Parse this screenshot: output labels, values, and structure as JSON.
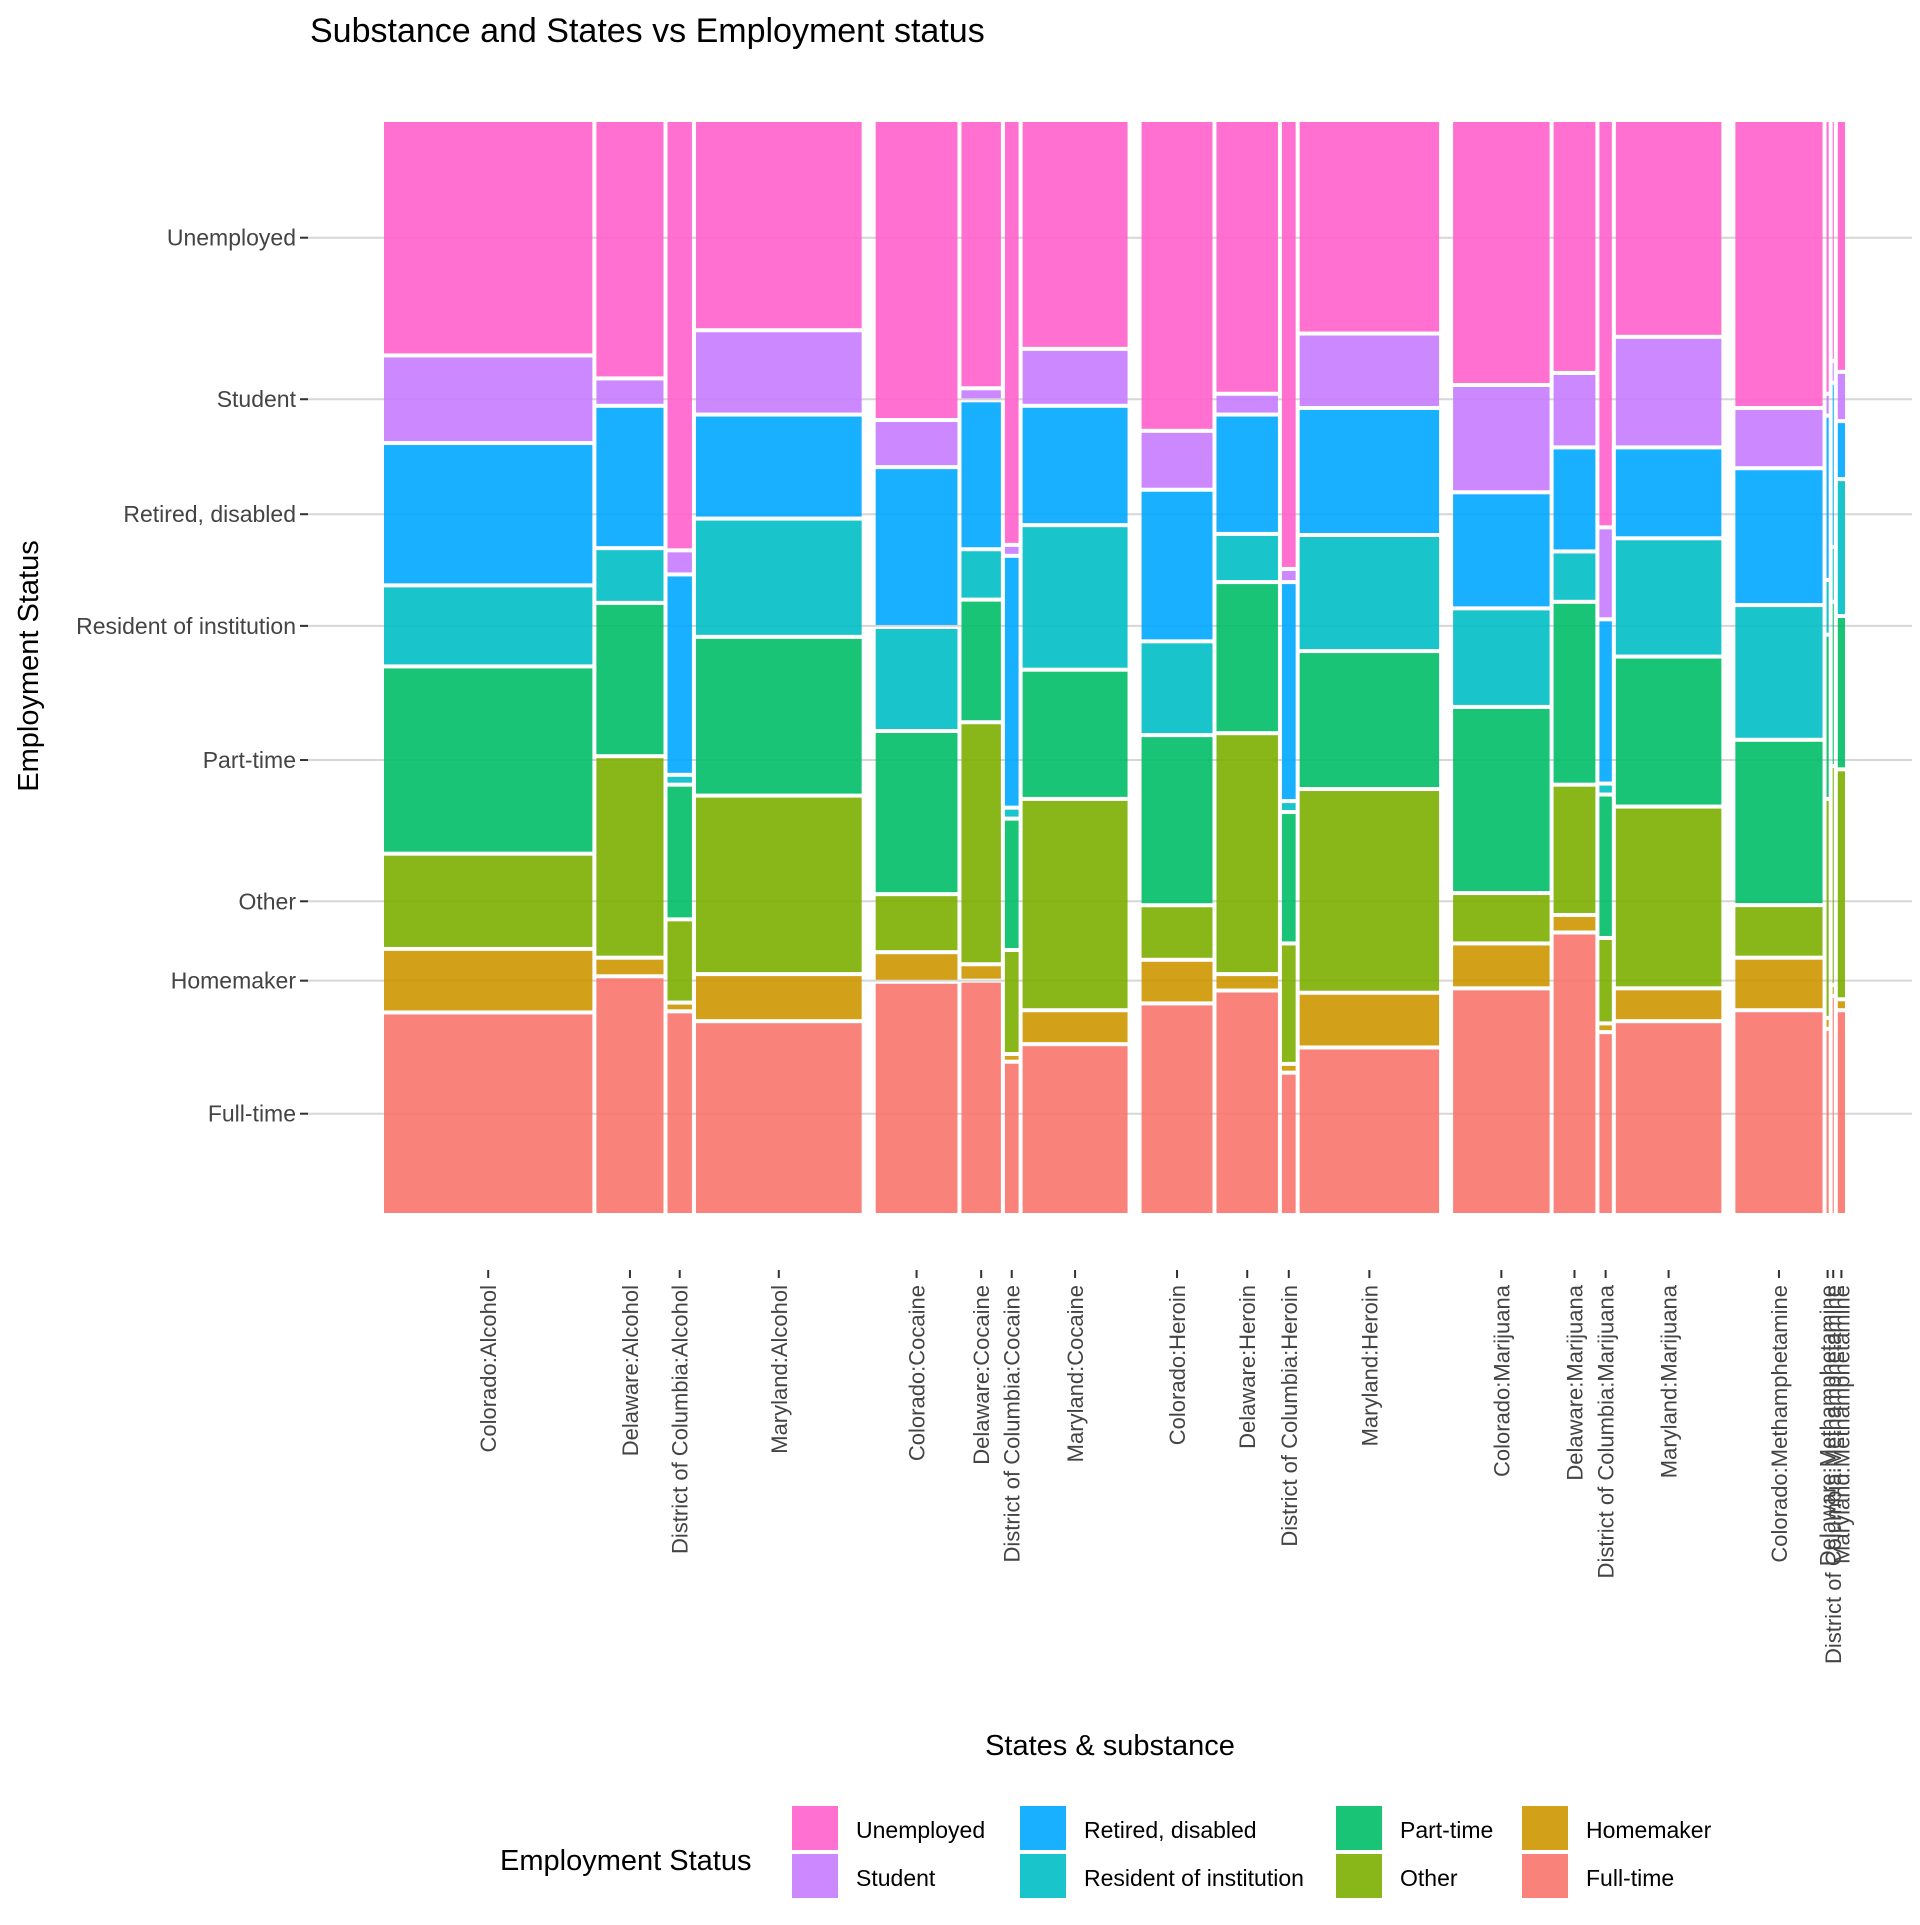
{
  "chart_data": {
    "type": "mosaic",
    "title": "Substance and States vs Employment status",
    "xlabel": "States & substance",
    "ylabel": "Employment Status",
    "grid": true,
    "legend_placement": "bottom",
    "legend_title": "Employment Status",
    "y_categories": [
      "Full-time",
      "Homemaker",
      "Other",
      "Part-time",
      "Resident of institution",
      "Retired, disabled",
      "Student",
      "Unemployed"
    ],
    "colors": {
      "Full-time": "#F8766D",
      "Homemaker": "#CD9600",
      "Other": "#7CAE00",
      "Part-time": "#00BE67",
      "Resident of institution": "#00BFC4",
      "Retired, disabled": "#00A9FF",
      "Student": "#C77CFF",
      "Unemployed": "#FF61CC"
    },
    "legend_order": [
      "Unemployed",
      "Student",
      "Retired, disabled",
      "Resident of institution",
      "Part-time",
      "Other",
      "Homemaker",
      "Full-time"
    ],
    "substances": [
      "Alcohol",
      "Cocaine",
      "Heroin",
      "Marijuana",
      "Methamphetamine"
    ],
    "columns": [
      {
        "label": "Colorado:Alcohol",
        "substance": "Alcohol",
        "width": 0.1475,
        "props": [
          0.185,
          0.058,
          0.087,
          0.171,
          0.074,
          0.13,
          0.08,
          0.215
        ]
      },
      {
        "label": "Delaware:Alcohol",
        "substance": "Alcohol",
        "width": 0.0475,
        "props": [
          0.218,
          0.017,
          0.184,
          0.14,
          0.05,
          0.13,
          0.025,
          0.236
        ]
      },
      {
        "label": "District of Columbia:Alcohol",
        "substance": "Alcohol",
        "width": 0.0173,
        "props": [
          0.186,
          0.008,
          0.076,
          0.123,
          0.009,
          0.183,
          0.022,
          0.393
        ]
      },
      {
        "label": "Maryland:Alcohol",
        "substance": "Alcohol",
        "width": 0.1173,
        "props": [
          0.177,
          0.043,
          0.163,
          0.145,
          0.108,
          0.095,
          0.077,
          0.192
        ]
      },
      {
        "label": "Colorado:Cocaine",
        "substance": "Cocaine",
        "width": 0.0579,
        "props": [
          0.213,
          0.027,
          0.053,
          0.149,
          0.095,
          0.146,
          0.043,
          0.274
        ]
      },
      {
        "label": "Delaware:Cocaine",
        "substance": "Cocaine",
        "width": 0.0279,
        "props": [
          0.214,
          0.015,
          0.221,
          0.112,
          0.046,
          0.136,
          0.011,
          0.245
        ]
      },
      {
        "label": "District of Columbia:Cocaine",
        "substance": "Cocaine",
        "width": 0.0097,
        "props": [
          0.14,
          0.007,
          0.095,
          0.12,
          0.01,
          0.23,
          0.01,
          0.388
        ]
      },
      {
        "label": "Maryland:Cocaine",
        "substance": "Cocaine",
        "width": 0.0743,
        "props": [
          0.156,
          0.031,
          0.193,
          0.118,
          0.132,
          0.109,
          0.052,
          0.209
        ]
      },
      {
        "label": "Colorado:Heroin",
        "substance": "Heroin",
        "width": 0.0502,
        "props": [
          0.194,
          0.04,
          0.05,
          0.156,
          0.086,
          0.139,
          0.054,
          0.285
        ]
      },
      {
        "label": "Delaware:Heroin",
        "substance": "Heroin",
        "width": 0.0435,
        "props": [
          0.205,
          0.015,
          0.22,
          0.138,
          0.044,
          0.109,
          0.019,
          0.25
        ]
      },
      {
        "label": "District of Columbia:Heroin",
        "substance": "Heroin",
        "width": 0.0097,
        "props": [
          0.13,
          0.008,
          0.11,
          0.12,
          0.01,
          0.2,
          0.012,
          0.41
        ]
      },
      {
        "label": "Maryland:Heroin",
        "substance": "Heroin",
        "width": 0.0987,
        "props": [
          0.153,
          0.05,
          0.186,
          0.126,
          0.106,
          0.116,
          0.068,
          0.195
        ]
      },
      {
        "label": "Colorado:Marijuana",
        "substance": "Marijuana",
        "width": 0.0683,
        "props": [
          0.207,
          0.041,
          0.046,
          0.17,
          0.09,
          0.106,
          0.098,
          0.242
        ]
      },
      {
        "label": "Delaware:Marijuana",
        "substance": "Marijuana",
        "width": 0.0296,
        "props": [
          0.258,
          0.016,
          0.119,
          0.167,
          0.046,
          0.095,
          0.068,
          0.231
        ]
      },
      {
        "label": "District of Columbia:Marijuana",
        "substance": "Marijuana",
        "width": 0.0088,
        "props": [
          0.167,
          0.008,
          0.078,
          0.131,
          0.01,
          0.15,
          0.084,
          0.372
        ]
      },
      {
        "label": "Maryland:Marijuana",
        "substance": "Marijuana",
        "width": 0.0747,
        "props": [
          0.177,
          0.03,
          0.166,
          0.137,
          0.108,
          0.083,
          0.101,
          0.198
        ]
      },
      {
        "label": "Colorado:Methamphetamine",
        "substance": "Methamphetamine",
        "width": 0.0617,
        "props": [
          0.187,
          0.048,
          0.048,
          0.151,
          0.123,
          0.125,
          0.055,
          0.263
        ]
      },
      {
        "label": "Delaware:Methamphetamine",
        "substance": "Methamphetamine",
        "width": 0.0015,
        "props": [
          0.17,
          0.01,
          0.2,
          0.15,
          0.05,
          0.15,
          0.02,
          0.25
        ]
      },
      {
        "label": "District of Columbia:Methamphetamine",
        "substance": "Methamphetamine",
        "width": 0.0008,
        "props": [
          0.2,
          0.01,
          0.2,
          0.15,
          0.05,
          0.15,
          0.02,
          0.22
        ]
      },
      {
        "label": "Maryland:Methamphetamine",
        "substance": "Methamphetamine",
        "width": 0.0051,
        "props": [
          0.187,
          0.01,
          0.21,
          0.14,
          0.125,
          0.053,
          0.045,
          0.23
        ]
      }
    ]
  }
}
